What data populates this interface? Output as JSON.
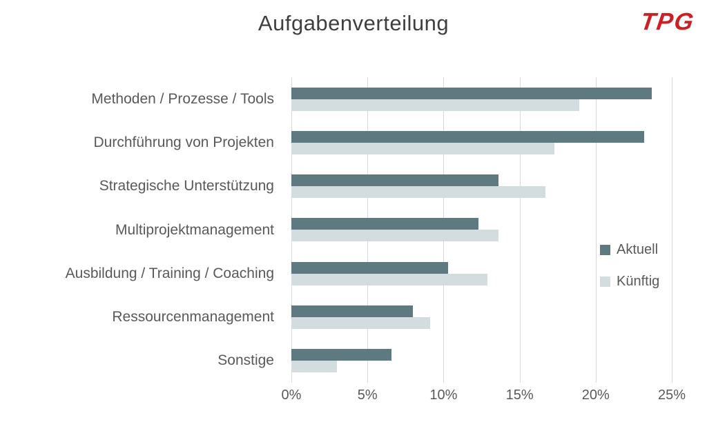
{
  "title": "Aufgabenverteilung",
  "logo": {
    "text": "TPG",
    "color": "#cb2026"
  },
  "legend": [
    {
      "label": "Aktuell",
      "color": "#5e7a80"
    },
    {
      "label": "Künftig",
      "color": "#d3dcde"
    }
  ],
  "colors": {
    "gridline": "#d9d9d9",
    "title_text": "#3f3f3f",
    "axis_text": "#595959",
    "series_aktuell": "#5e7a80",
    "series_kuenftig": "#d3dcde"
  },
  "chart_data": {
    "type": "bar",
    "orientation": "horizontal",
    "title": "Aufgabenverteilung",
    "categories": [
      "Methoden / Prozesse / Tools",
      "Durchführung von Projekten",
      "Strategische Unterstützung",
      "Multiprojektmanagement",
      "Ausbildung / Training / Coaching",
      "Ressourcenmanagement",
      "Sonstige"
    ],
    "series": [
      {
        "name": "Aktuell",
        "color": "#5e7a80",
        "values": [
          23.7,
          23.2,
          13.6,
          12.3,
          10.3,
          8.0,
          6.6
        ]
      },
      {
        "name": "Künftig",
        "color": "#d3dcde",
        "values": [
          18.9,
          17.3,
          16.7,
          13.6,
          12.9,
          9.1,
          3.0
        ]
      }
    ],
    "xlim": [
      0,
      25
    ],
    "xtick_values": [
      0,
      5,
      10,
      15,
      20,
      25
    ],
    "xtick_labels": [
      "0%",
      "5%",
      "10%",
      "15%",
      "20%",
      "25%"
    ],
    "grid": true,
    "legend_position": "right"
  }
}
